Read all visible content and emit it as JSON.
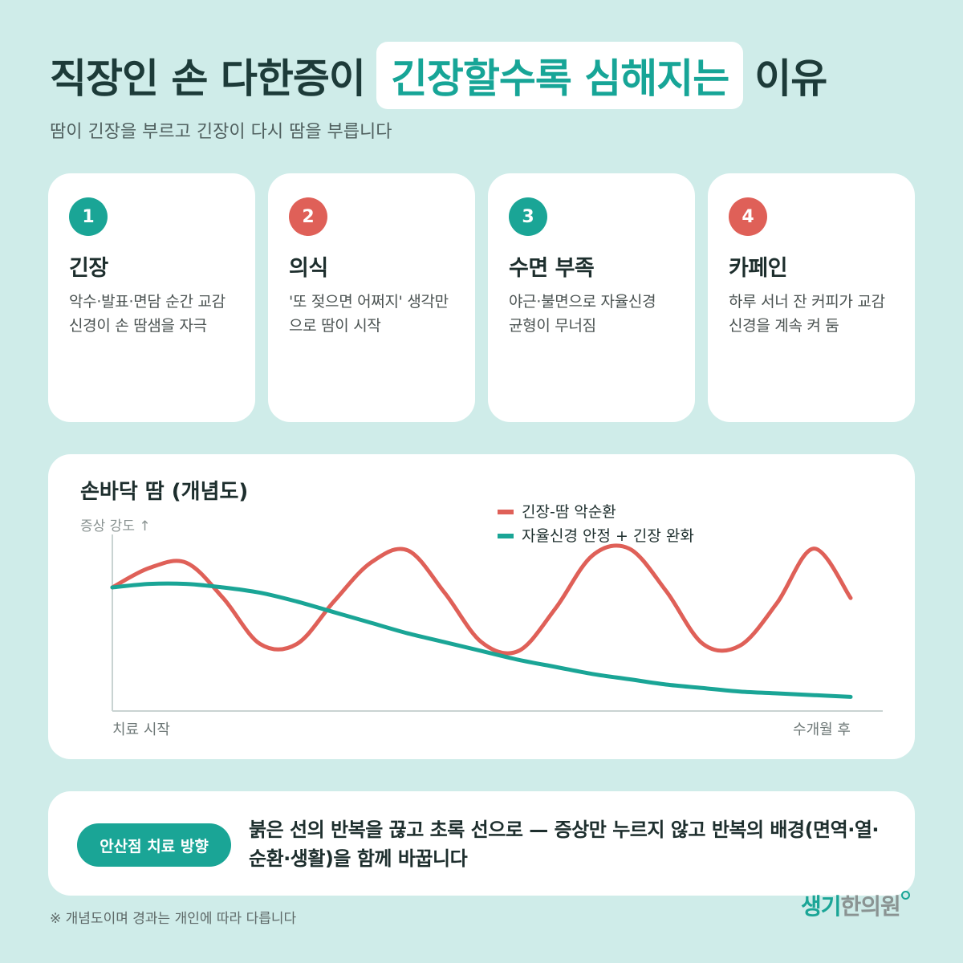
{
  "header": {
    "title_pre": "직장인 손 다한증이",
    "title_highlight": "긴장할수록 심해지는",
    "title_post": "이유",
    "subtitle": "땀이 긴장을 부르고 긴장이 다시 땀을 부릅니다"
  },
  "cards": [
    {
      "number": "1",
      "title": "긴장",
      "desc": "악수·발표·면담 순간 교감신경이 손 땀샘을 자극",
      "badge_color": "#1aa596"
    },
    {
      "number": "2",
      "title": "의식",
      "desc": "'또 젖으면 어쩌지' 생각만으로 땀이 시작",
      "badge_color": "#df6058"
    },
    {
      "number": "3",
      "title": "수면 부족",
      "desc": "야근·불면으로 자율신경 균형이 무너짐",
      "badge_color": "#1aa596"
    },
    {
      "number": "4",
      "title": "카페인",
      "desc": "하루 서너 잔 커피가 교감신경을 계속 켜 둠",
      "badge_color": "#df6058"
    }
  ],
  "chart_data": {
    "type": "line",
    "title": "손바닥 땀 (개념도)",
    "ylabel": "증상 강도 ↑",
    "x_start_label": "치료 시작",
    "x_end_label": "수개월 후",
    "x": [
      0,
      5,
      10,
      15,
      20,
      25,
      30,
      35,
      40,
      45,
      50,
      55,
      60,
      65,
      70,
      75,
      80,
      85,
      90,
      95,
      100
    ],
    "ylim": [
      0,
      100
    ],
    "grid": false,
    "legend_position": "top-right",
    "series": [
      {
        "name": "긴장-땀 악순환",
        "color": "#df6058",
        "values": [
          70,
          81,
          84,
          64,
          38,
          38,
          62,
          84,
          91,
          67,
          39,
          34,
          58,
          88,
          92,
          68,
          38,
          37,
          61,
          92,
          64
        ]
      },
      {
        "name": "자율신경 안정 + 긴장 완화",
        "color": "#1aa596",
        "values": [
          70,
          72,
          72,
          70,
          67,
          62,
          56,
          50,
          44,
          39,
          34,
          29,
          25,
          21,
          18,
          15,
          13,
          11,
          10,
          9,
          8
        ]
      }
    ]
  },
  "bottom": {
    "pill_label": "안산점 치료 방향",
    "text": "붉은 선의 반복을 끊고 초록 선으로 — 증상만 누르지 않고 반복의 배경(면역·열·순환·생활)을 함께 바꿉니다"
  },
  "footnote": "※ 개념도이며 경과는 개인에 따라 다릅니다",
  "logo": {
    "part1": "생기",
    "part2": "한의원"
  }
}
